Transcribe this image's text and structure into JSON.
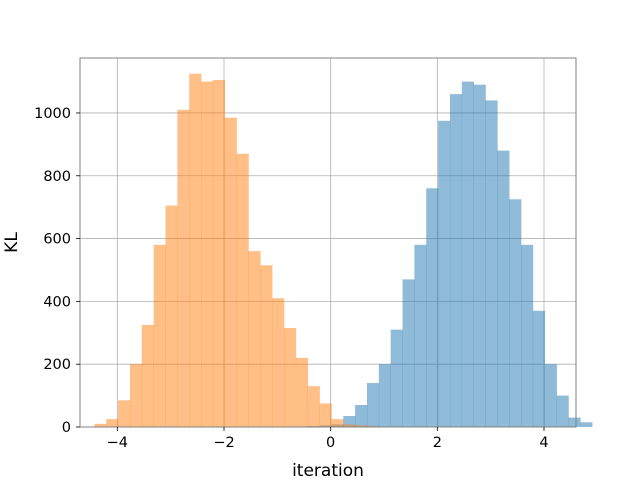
{
  "chart_data": {
    "type": "bar",
    "title": "",
    "xlabel": "iteration",
    "ylabel": "KL",
    "xlim": [
      -4.7,
      4.6
    ],
    "ylim": [
      0,
      1175
    ],
    "xticks": [
      -4,
      -2,
      0,
      2,
      4
    ],
    "xtick_labels": [
      "−4",
      "−2",
      "0",
      "2",
      "4"
    ],
    "yticks": [
      0,
      200,
      400,
      600,
      800,
      1000
    ],
    "ytick_labels": [
      "0",
      "200",
      "400",
      "600",
      "800",
      "1000"
    ],
    "grid": true,
    "colors": {
      "blue": "#1f77b4",
      "orange": "#ff7f0e",
      "grid": "#b0b0b0",
      "axes": "#808080"
    },
    "bar_opacity": 0.5,
    "series": [
      {
        "color": "blue",
        "bin_width": 0.2222,
        "bin_start": -0.43,
        "values": [
          3,
          5,
          8,
          35,
          70,
          140,
          200,
          310,
          470,
          580,
          760,
          975,
          1060,
          1100,
          1090,
          1040,
          880,
          725,
          580,
          370,
          200,
          100,
          30,
          15
        ]
      },
      {
        "color": "orange",
        "bin_width": 0.2222,
        "bin_start": -4.43,
        "values": [
          10,
          25,
          85,
          200,
          325,
          580,
          705,
          1010,
          1125,
          1100,
          1105,
          985,
          870,
          560,
          515,
          410,
          315,
          220,
          130,
          75,
          25,
          8,
          5,
          3
        ]
      }
    ]
  }
}
